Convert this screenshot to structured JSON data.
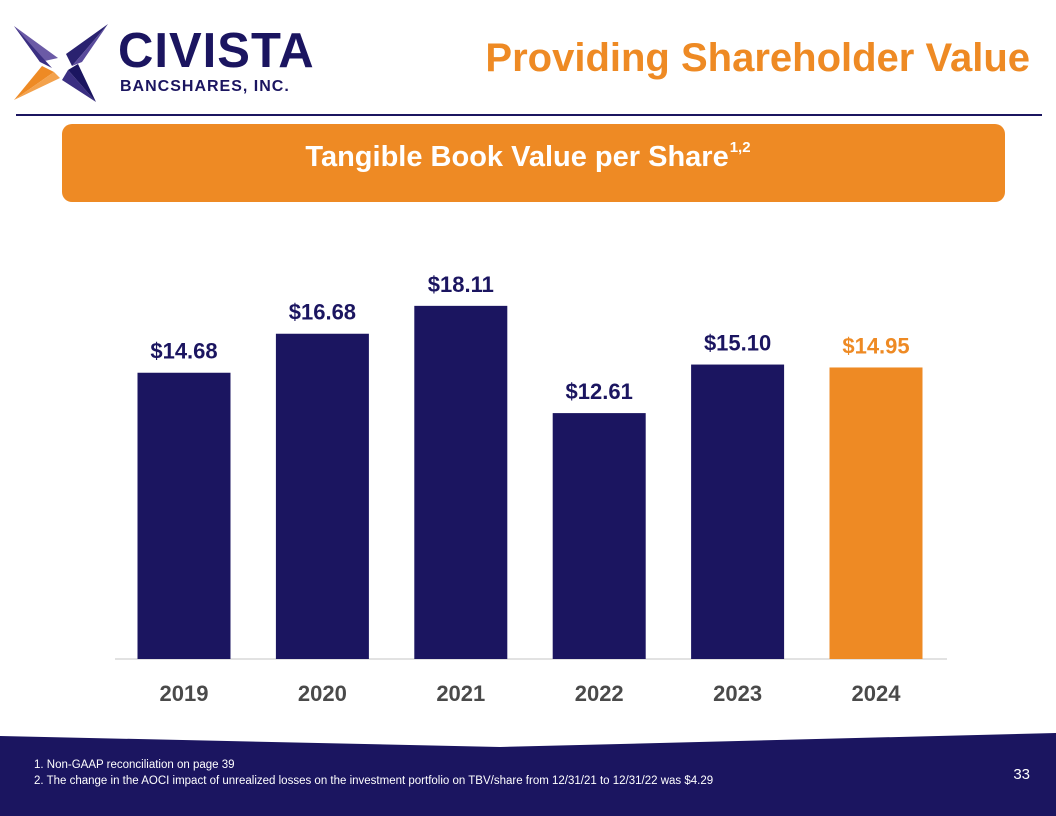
{
  "brand": {
    "name": "CIVISTA",
    "sub": "BANCSHARES, INC.",
    "navy": "#1b1560",
    "orange": "#ee8a24",
    "logo_icon": "star-logo-icon"
  },
  "header": {
    "title": "Providing Shareholder Value"
  },
  "banner": {
    "text": "Tangible Book Value per Share",
    "superscript": "1,2"
  },
  "chart_data": {
    "type": "bar",
    "title": "Tangible Book Value per Share",
    "xlabel": "",
    "ylabel": "",
    "categories": [
      "2019",
      "2020",
      "2021",
      "2022",
      "2023",
      "2024"
    ],
    "values": [
      14.68,
      16.68,
      18.11,
      12.61,
      15.1,
      14.95
    ],
    "labels": [
      "$14.68",
      "$16.68",
      "$18.11",
      "$12.61",
      "$15.10",
      "$14.95"
    ],
    "bar_colors": [
      "#1b1560",
      "#1b1560",
      "#1b1560",
      "#1b1560",
      "#1b1560",
      "#ee8a24"
    ],
    "ylim": [
      0,
      20
    ],
    "grid": false,
    "legend": "none"
  },
  "footer": {
    "notes": [
      "1. Non-GAAP reconciliation on page 39",
      "2.  The change in the AOCI impact of unrealized losses on the investment portfolio on TBV/share from 12/31/21 to 12/31/22 was $4.29"
    ],
    "page": "33"
  }
}
